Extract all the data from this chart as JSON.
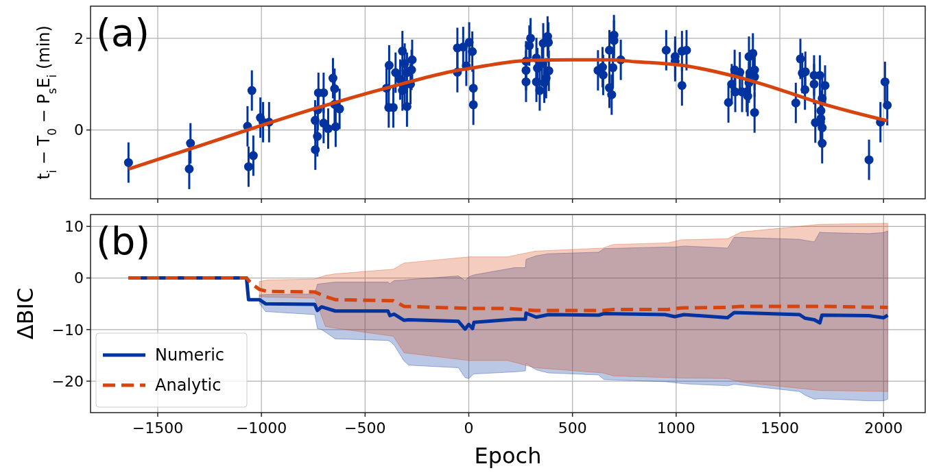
{
  "chart_data": [
    {
      "type": "scatter",
      "ylabel": "t$_{i}$ − T$_{0}$ − P$_{s}$E$_{i}$ (min)",
      "annotations": [
        "(a)"
      ],
      "xlim": [
        -1824,
        2201
      ],
      "ylim": [
        -1.5,
        2.7
      ],
      "xticks": [
        -1500,
        -1000,
        -500,
        0,
        500,
        1000,
        1500,
        2000
      ],
      "yticks": [
        0,
        2
      ],
      "tick_labels": "y",
      "grid": true,
      "series": [
        {
          "color": "#0033a0",
          "marker": "circle",
          "x": [
            -1641,
            -1348,
            -1342,
            -1067,
            -1062,
            -1046,
            -1039,
            -1005,
            -992,
            -963,
            -741,
            -740,
            -730,
            -728,
            -725,
            -700,
            -700,
            -678,
            -655,
            -647,
            -647,
            -642,
            -623,
            -397,
            -386,
            -384,
            -364,
            -353,
            -331,
            -320,
            -320,
            -309,
            -309,
            -298,
            -298,
            -281,
            -276,
            -273,
            -55,
            -55,
            -27,
            -12,
            2,
            17,
            22,
            22,
            276,
            276,
            276,
            292,
            298,
            326,
            326,
            331,
            342,
            353,
            359,
            364,
            373,
            380,
            384,
            386,
            623,
            645,
            648,
            678,
            678,
            689,
            695,
            700,
            700,
            733,
            952,
            995,
            995,
            1028,
            1028,
            1050,
            1252,
            1268,
            1282,
            1285,
            1318,
            1307,
            1340,
            1345,
            1351,
            1351,
            1356,
            1370,
            1378,
            1378,
            1378,
            1577,
            1599,
            1608,
            1621,
            1623,
            1665,
            1665,
            1671,
            1693,
            1696,
            1698,
            1698,
            1704,
            1704,
            1704,
            1718,
            1930,
            1985,
            2007,
            2018
          ],
          "values": [
            -0.71,
            -0.85,
            -0.29,
            0.08,
            -0.8,
            0.86,
            -0.56,
            0.27,
            0.17,
            0.17,
            0.21,
            -0.43,
            -0.14,
            0.44,
            0.81,
            0.81,
            0.15,
            0.03,
            1.13,
            0.9,
            0.56,
            0.07,
            0.46,
            0.91,
            0.49,
            1.41,
            0.49,
            1.25,
            1.1,
            1.72,
            0.86,
            1.45,
            1.0,
            1.25,
            0.51,
            1.0,
            1.31,
            1.53,
            1.79,
            1.26,
            1.81,
            1.4,
            1.91,
            1.71,
            0.91,
            0.55,
            1.5,
            1.3,
            1.05,
            1.84,
            2.0,
            1.57,
            1.05,
            1.35,
            0.86,
            1.45,
            1.89,
            1.03,
            1.13,
            2.04,
            1.91,
            1.29,
            1.3,
            1.37,
            1.2,
            1.74,
            0.92,
            0.77,
            1.36,
            2.07,
            1.95,
            1.53,
            1.74,
            1.6,
            1.5,
            1.72,
            0.97,
            1.74,
            0.6,
            1.0,
            1.31,
            0.83,
            0.83,
            1.26,
            0.83,
            0.74,
            1.03,
            1.6,
            1.25,
            1.67,
            1.31,
            1.16,
            0.38,
            0.59,
            1.55,
            1.24,
            0.88,
            1.27,
            1.19,
            1.0,
            0.16,
            1.19,
            0.17,
            0.42,
            0.25,
            0.69,
            0.05,
            -0.29,
            0.97,
            -0.65,
            0.17,
            1.05,
            0.54
          ],
          "errors": [
            0.44,
            0.44,
            0.44,
            0.44,
            0.44,
            0.44,
            0.44,
            0.44,
            0.44,
            0.44,
            0.44,
            0.44,
            0.44,
            0.44,
            0.44,
            0.44,
            0.44,
            0.44,
            0.44,
            0.44,
            0.44,
            0.44,
            0.44,
            0.44,
            0.44,
            0.44,
            0.44,
            0.44,
            0.44,
            0.44,
            0.44,
            0.44,
            0.44,
            0.44,
            0.44,
            0.44,
            0.44,
            0.44,
            0.44,
            0.44,
            0.44,
            0.44,
            0.44,
            0.44,
            0.44,
            0.44,
            0.44,
            0.44,
            0.44,
            0.44,
            0.44,
            0.44,
            0.44,
            0.44,
            0.44,
            0.44,
            0.44,
            0.44,
            0.44,
            0.44,
            0.44,
            0.44,
            0.44,
            0.44,
            0.44,
            0.44,
            0.44,
            0.44,
            0.44,
            0.44,
            0.44,
            0.44,
            0.44,
            0.44,
            0.44,
            0.44,
            0.44,
            0.44,
            0.44,
            0.44,
            0.44,
            0.44,
            0.44,
            0.44,
            0.44,
            0.44,
            0.44,
            0.44,
            0.44,
            0.44,
            0.44,
            0.44,
            0.44,
            0.44,
            0.44,
            0.44,
            0.44,
            0.44,
            0.44,
            0.44,
            0.44,
            0.44,
            0.44,
            0.44,
            0.44,
            0.44,
            0.44,
            0.44,
            0.44,
            0.44,
            0.44,
            0.44,
            0.44
          ]
        },
        {
          "color": "#d6450f",
          "type": "line",
          "x": [
            -1641,
            -1342,
            -1067,
            -740,
            -384,
            -55,
            0,
            300,
            500,
            680,
            800,
            1028,
            1300,
            1500,
            1700,
            2020
          ],
          "values": [
            -0.85,
            -0.41,
            0.0,
            0.47,
            0.93,
            1.3,
            1.34,
            1.52,
            1.53,
            1.53,
            1.49,
            1.41,
            1.15,
            0.88,
            0.58,
            0.2
          ]
        }
      ]
    },
    {
      "type": "line",
      "xlabel": "Epoch",
      "ylabel": "ΔBIC",
      "annotations": [
        "(b)"
      ],
      "xlim": [
        -1824,
        2201
      ],
      "ylim": [
        -26.1,
        12.3
      ],
      "xticks": [
        -1500,
        -1000,
        -500,
        0,
        500,
        1000,
        1500,
        2000
      ],
      "yticks": [
        -20,
        -10,
        0,
        10
      ],
      "grid": true,
      "legend": "bottom left",
      "series": [
        {
          "name": "Numeric",
          "color": "#0033a0",
          "line_style": "solid",
          "x": [
            -1641,
            -1072,
            -1062,
            -1010,
            -980,
            -743,
            -730,
            -710,
            -644,
            -390,
            -380,
            -360,
            -312,
            -290,
            -50,
            -18,
            0,
            18,
            25,
            220,
            273,
            276,
            325,
            384,
            626,
            652,
            947,
            993,
            1038,
            1248,
            1280,
            1595,
            1621,
            1666,
            1693,
            1703,
            1929,
            2000,
            2020
          ],
          "values": [
            0,
            0,
            -4.2,
            -4.2,
            -5.0,
            -5.1,
            -6.3,
            -5.6,
            -6.4,
            -6.4,
            -7.3,
            -7.0,
            -8.2,
            -8.1,
            -8.4,
            -9.9,
            -9.0,
            -9.8,
            -8.6,
            -8.0,
            -8.0,
            -6.8,
            -7.6,
            -7.1,
            -7.2,
            -6.9,
            -7.1,
            -7.5,
            -7.1,
            -7.7,
            -6.7,
            -7.1,
            -7.8,
            -8.1,
            -8.7,
            -7.2,
            -7.3,
            -7.7,
            -7.2
          ],
          "upper": [
            null,
            null,
            null,
            -3.3,
            -3.2,
            -3.1,
            -1.2,
            -1.1,
            -0.8,
            -0.8,
            -1.1,
            -0.5,
            -0.4,
            -0.3,
            0.4,
            -0.5,
            0.2,
            0.5,
            0.6,
            2.0,
            2.0,
            3.6,
            4.3,
            4.7,
            5.0,
            5.7,
            6.0,
            6.0,
            6.2,
            5.8,
            7.9,
            7.5,
            7.3,
            7.0,
            8.9,
            8.8,
            8.6,
            8.8,
            9.1
          ],
          "lower": [
            null,
            null,
            null,
            -4.9,
            -6.5,
            -7.1,
            -9.8,
            -10.0,
            -11.8,
            -12.1,
            -12.3,
            -13,
            -16.1,
            -16.9,
            -17.4,
            -19.3,
            -19.5,
            -18.8,
            -18.6,
            -18.2,
            -18.0,
            -16.6,
            -17.8,
            -18.4,
            -18.8,
            -19.7,
            -20.1,
            -20.3,
            -20.5,
            -20.9,
            -20.6,
            -22.0,
            -22.7,
            -23.5,
            -23.4,
            -23.4,
            -23.8,
            -23.8,
            -23.5
          ]
        },
        {
          "name": "Analytic",
          "color": "#d6450f",
          "line_style": "dashed",
          "x": [
            -1641,
            -1072,
            -1045,
            -1010,
            -971,
            -743,
            -691,
            -644,
            -364,
            -312,
            2,
            187,
            319,
            646,
            698,
            960,
            1025,
            1248,
            1313,
            1693,
            2020
          ],
          "values": [
            0,
            0,
            -1.2,
            -2.2,
            -2.6,
            -2.7,
            -3.6,
            -4.2,
            -4.4,
            -5.5,
            -5.9,
            -5.9,
            -6.3,
            -6.3,
            -6.1,
            -6.1,
            -5.8,
            -5.7,
            -5.5,
            -5.5,
            -5.7
          ],
          "upper": [
            null,
            null,
            null,
            -0.7,
            -0.4,
            -0.2,
            0.5,
            0.8,
            1.7,
            2.9,
            4.1,
            4.1,
            5.2,
            5.8,
            6.5,
            6.8,
            7.4,
            7.6,
            8.9,
            10.4,
            10.6
          ],
          "lower": [
            null,
            null,
            null,
            -3.6,
            -3.7,
            -3.9,
            -9.4,
            -9.72,
            -11.3,
            -14.5,
            -16.0,
            -16.0,
            -17.4,
            -18.4,
            -19.0,
            -19.3,
            -19.4,
            -19.5,
            -20.2,
            -21.8,
            -22.0
          ]
        }
      ]
    }
  ]
}
